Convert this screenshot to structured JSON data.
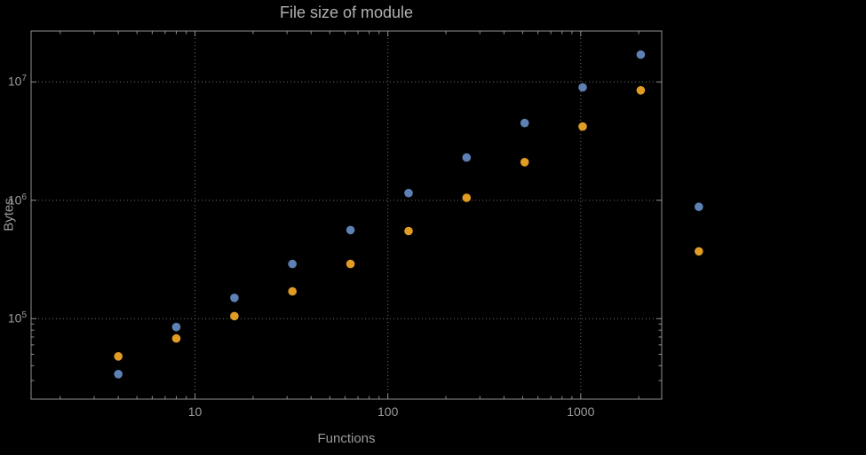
{
  "chart_data": {
    "type": "scatter",
    "title": "File size of module",
    "xlabel": "Functions",
    "ylabel": "Bytes",
    "x_scale": "log",
    "y_scale": "log",
    "x": [
      4,
      8,
      16,
      32,
      64,
      128,
      256,
      512,
      1024,
      2048,
      4096
    ],
    "series": [
      {
        "name": "series-blue",
        "color": "#5E81B5",
        "values": [
          34000,
          85000,
          150000,
          290000,
          560000,
          1150000,
          2300000,
          4500000,
          9000000,
          17000000,
          880000
        ]
      },
      {
        "name": "series-orange",
        "color": "#E19C24",
        "values": [
          48000,
          68000,
          105000,
          170000,
          290000,
          550000,
          1050000,
          2100000,
          4200000,
          8500000,
          370000
        ]
      }
    ],
    "x_ticks": [
      {
        "value": 10,
        "label": "10"
      },
      {
        "value": 100,
        "label": "100"
      },
      {
        "value": 1000,
        "label": "1000"
      }
    ],
    "y_ticks": [
      {
        "value": 100000,
        "base": "10",
        "exp": "5"
      },
      {
        "value": 1000000,
        "base": "10",
        "exp": "6"
      },
      {
        "value": 10000000,
        "base": "10",
        "exp": "7"
      }
    ],
    "xlim_log": [
      0.15,
      3.42
    ],
    "ylim_log": [
      4.32,
      7.43
    ],
    "grid": "dotted",
    "legend": "none",
    "background": "#000000",
    "frame_color": "#8f8f8f",
    "grid_color": "#6f6f6f",
    "text_color": "#9b9b9b",
    "point_radius": 4.8
  }
}
